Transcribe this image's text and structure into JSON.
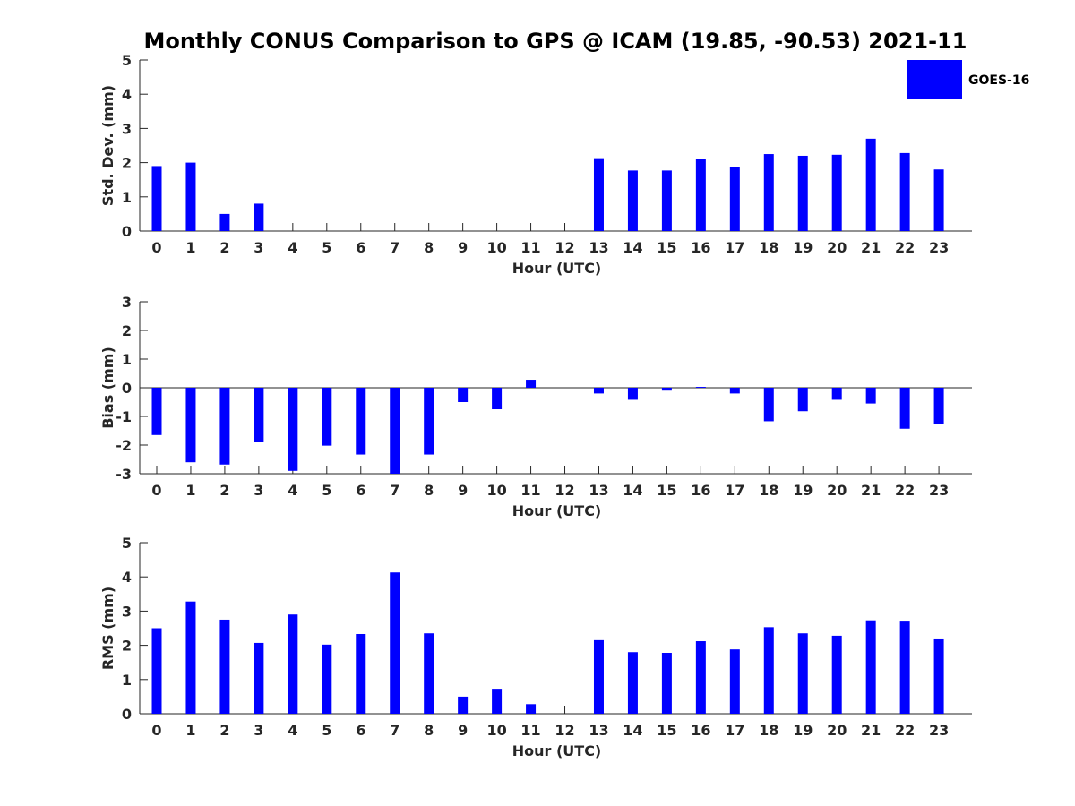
{
  "title": "Monthly CONUS Comparison to GPS @ ICAM (19.85, -90.53) 2021-11",
  "legend": {
    "label": "GOES-16",
    "color": "#0000ff"
  },
  "chart_data": [
    {
      "type": "bar",
      "title": "Monthly CONUS Comparison to GPS @ ICAM (19.85, -90.53) 2021-11",
      "xlabel": "Hour (UTC)",
      "ylabel": "Std. Dev. (mm)",
      "ylim": [
        0,
        5
      ],
      "yticks": [
        0,
        1,
        2,
        3,
        4,
        5
      ],
      "categories": [
        "0",
        "1",
        "2",
        "3",
        "4",
        "5",
        "6",
        "7",
        "8",
        "9",
        "10",
        "11",
        "12",
        "13",
        "14",
        "15",
        "16",
        "17",
        "18",
        "19",
        "20",
        "21",
        "22",
        "23"
      ],
      "series": [
        {
          "name": "GOES-16",
          "color": "#0000ff",
          "values": [
            1.9,
            2.0,
            0.5,
            0.8,
            0,
            0,
            0,
            0,
            0,
            0,
            0,
            0,
            0,
            2.13,
            1.77,
            1.77,
            2.1,
            1.87,
            2.25,
            2.2,
            2.23,
            2.7,
            2.28,
            1.8
          ]
        }
      ]
    },
    {
      "type": "bar",
      "xlabel": "Hour (UTC)",
      "ylabel": "Bias (mm)",
      "ylim": [
        -3,
        3
      ],
      "yticks": [
        -3,
        -2,
        -1,
        0,
        1,
        2,
        3
      ],
      "categories": [
        "0",
        "1",
        "2",
        "3",
        "4",
        "5",
        "6",
        "7",
        "8",
        "9",
        "10",
        "11",
        "12",
        "13",
        "14",
        "15",
        "16",
        "17",
        "18",
        "19",
        "20",
        "21",
        "22",
        "23"
      ],
      "series": [
        {
          "name": "GOES-16",
          "color": "#0000ff",
          "values": [
            -1.65,
            -2.6,
            -2.68,
            -1.9,
            -2.9,
            -2.02,
            -2.33,
            -3.0,
            -2.33,
            -0.5,
            -0.75,
            0.28,
            0,
            -0.2,
            -0.42,
            -0.1,
            0.03,
            -0.2,
            -1.17,
            -0.82,
            -0.42,
            -0.55,
            -1.43,
            -1.27
          ]
        }
      ]
    },
    {
      "type": "bar",
      "xlabel": "Hour (UTC)",
      "ylabel": "RMS (mm)",
      "ylim": [
        0,
        5
      ],
      "yticks": [
        0,
        1,
        2,
        3,
        4,
        5
      ],
      "categories": [
        "0",
        "1",
        "2",
        "3",
        "4",
        "5",
        "6",
        "7",
        "8",
        "9",
        "10",
        "11",
        "12",
        "13",
        "14",
        "15",
        "16",
        "17",
        "18",
        "19",
        "20",
        "21",
        "22",
        "23"
      ],
      "series": [
        {
          "name": "GOES-16",
          "color": "#0000ff",
          "values": [
            2.5,
            3.28,
            2.75,
            2.07,
            2.9,
            2.02,
            2.33,
            4.13,
            2.35,
            0.5,
            0.73,
            0.28,
            0,
            2.15,
            1.8,
            1.78,
            2.12,
            1.88,
            2.53,
            2.35,
            2.28,
            2.73,
            2.72,
            2.2
          ]
        }
      ]
    }
  ]
}
